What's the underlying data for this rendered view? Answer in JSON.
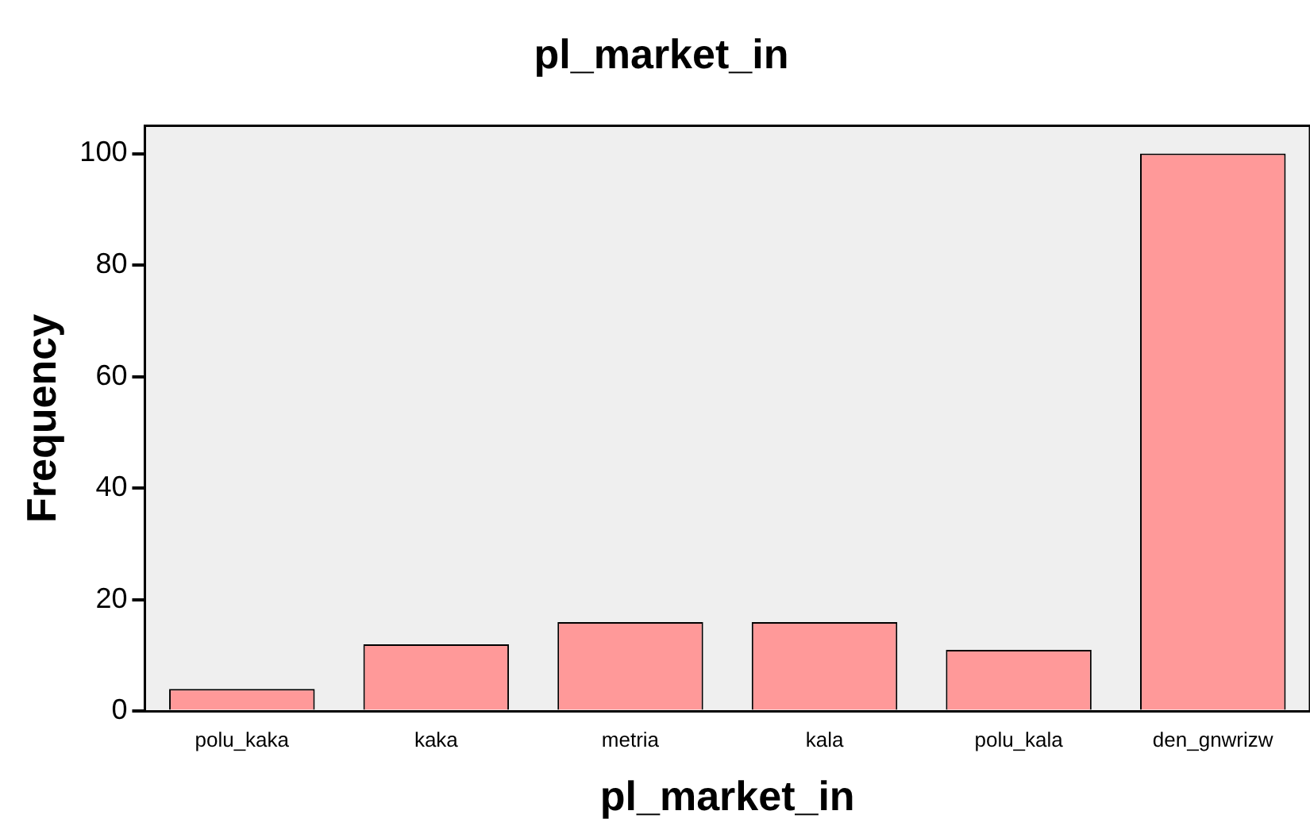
{
  "chart_data": {
    "type": "bar",
    "title": "pl_market_in",
    "xlabel": "pl_market_in",
    "ylabel": "Frequency",
    "categories": [
      "polu_kaka",
      "kaka",
      "metria",
      "kala",
      "polu_kala",
      "den_gnwrizw"
    ],
    "values": [
      4,
      12,
      16,
      16,
      11,
      100
    ],
    "color": "#ff9999",
    "ylim": [
      0,
      105
    ],
    "yticks": [
      0,
      20,
      40,
      60,
      80,
      100
    ],
    "grid": false,
    "legend": false
  }
}
